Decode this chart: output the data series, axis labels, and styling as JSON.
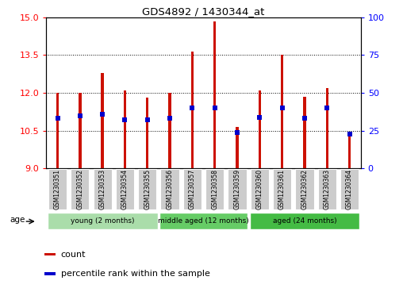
{
  "title": "GDS4892 / 1430344_at",
  "samples": [
    "GSM1230351",
    "GSM1230352",
    "GSM1230353",
    "GSM1230354",
    "GSM1230355",
    "GSM1230356",
    "GSM1230357",
    "GSM1230358",
    "GSM1230359",
    "GSM1230360",
    "GSM1230361",
    "GSM1230362",
    "GSM1230363",
    "GSM1230364"
  ],
  "count_values": [
    12.0,
    12.0,
    12.8,
    12.1,
    11.8,
    12.0,
    13.65,
    14.85,
    10.65,
    12.1,
    13.5,
    11.85,
    12.2,
    10.45
  ],
  "percentile_values": [
    33,
    35,
    36,
    32,
    32,
    33,
    40,
    40,
    24,
    34,
    40,
    33,
    40,
    23
  ],
  "ylim_left": [
    9,
    15
  ],
  "ylim_right": [
    0,
    100
  ],
  "yticks_left": [
    9,
    10.5,
    12,
    13.5,
    15
  ],
  "yticks_right": [
    0,
    25,
    50,
    75,
    100
  ],
  "bar_color": "#cc1100",
  "percentile_color": "#0000cc",
  "groups": [
    {
      "label": "young (2 months)",
      "start": 0,
      "end": 5,
      "color": "#aaddaa"
    },
    {
      "label": "middle aged (12 months)",
      "start": 5,
      "end": 9,
      "color": "#66cc66"
    },
    {
      "label": "aged (24 months)",
      "start": 9,
      "end": 14,
      "color": "#44bb44"
    }
  ],
  "age_label": "age",
  "legend_count": "count",
  "legend_percentile": "percentile rank within the sample",
  "bar_width": 0.12
}
